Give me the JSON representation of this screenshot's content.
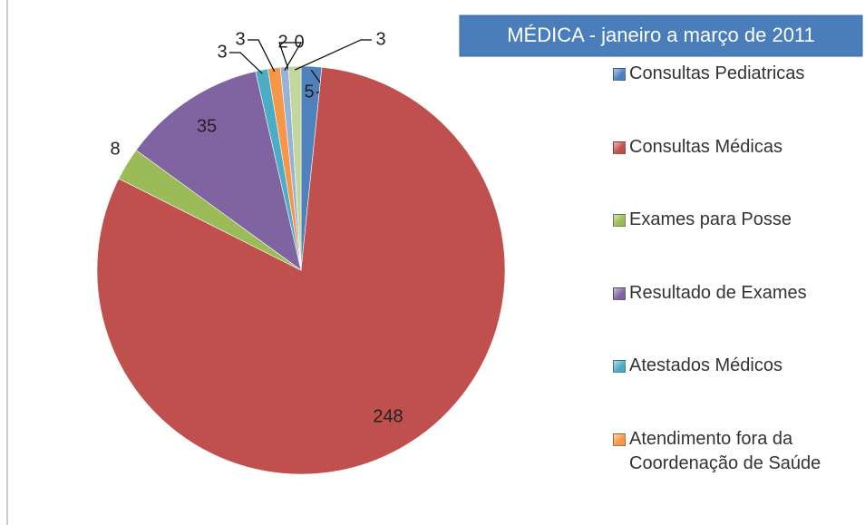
{
  "chart_data": {
    "type": "pie",
    "title": "MÉDICA - janeiro a março de 2011",
    "categories": [
      "Consultas Pediatricas",
      "Consultas Médicas",
      "Exames para Posse",
      "Resultado de Exames",
      "Atestados Médicos",
      "Atendimento fora da Coordenação de Saúde",
      null,
      null,
      null
    ],
    "values": [
      5,
      248,
      8,
      35,
      3,
      3,
      2,
      0,
      3
    ],
    "colors": [
      "#4f81bd",
      "#c0504d",
      "#9bbb59",
      "#8064a2",
      "#4bacc6",
      "#f79646",
      "#95b3d7",
      "#d99694",
      "#c3d69b"
    ],
    "legend": "right"
  }
}
